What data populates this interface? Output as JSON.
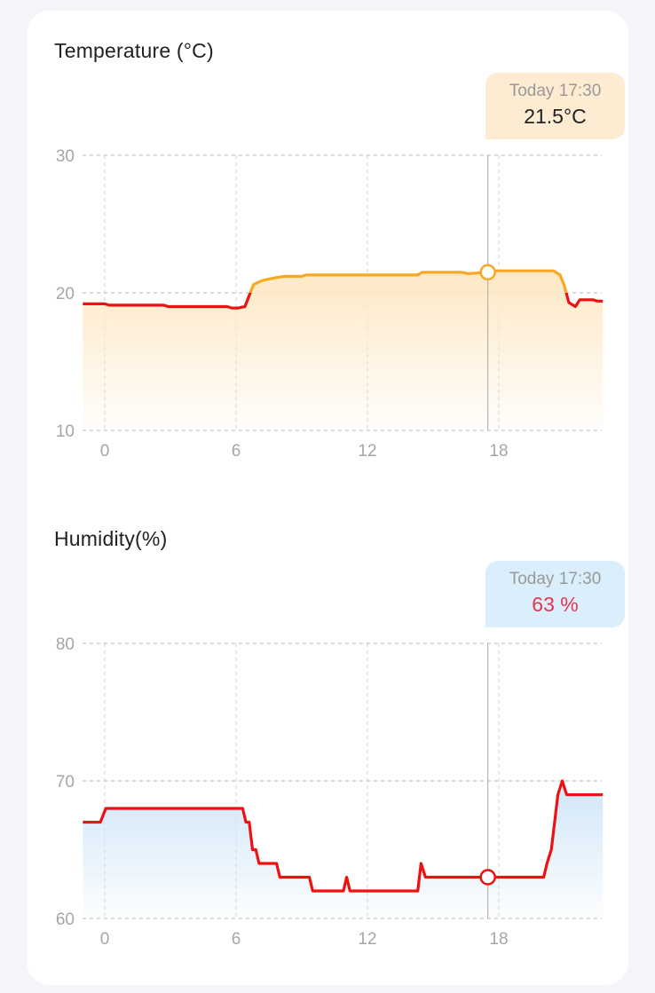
{
  "colors": {
    "temp_line_high": "#f7a823",
    "temp_line_low": "#ee1111",
    "temp_fill": "#fde8c4",
    "hum_line": "#ee1111",
    "hum_fill": "#cfe6f8",
    "temp_tip_bg": "#fdebd2",
    "hum_tip_bg": "#daeefb",
    "hum_value": "#e8334f"
  },
  "chart_data": [
    {
      "type": "area",
      "title": "Temperature (°C)",
      "xticks": [
        "0",
        "6",
        "12",
        "18"
      ],
      "xtick_values": [
        0,
        6,
        12,
        18
      ],
      "xlim": [
        -1,
        22.75
      ],
      "yticks": [
        "10",
        "20",
        "30"
      ],
      "ylim": [
        10,
        30
      ],
      "grid": true,
      "visual_threshold": 20,
      "x": [
        -1,
        0,
        0.2,
        2.7,
        2.9,
        5.6,
        5.8,
        6.1,
        6.4,
        6.6,
        6.8,
        7.2,
        7.8,
        8.2,
        9.0,
        9.2,
        14.3,
        14.5,
        16.3,
        16.6,
        17.5,
        17.8,
        20.5,
        20.8,
        21.0,
        21.2,
        21.5,
        21.7,
        22.3,
        22.5,
        22.75
      ],
      "y": [
        19.2,
        19.2,
        19.1,
        19.1,
        19.0,
        19.0,
        18.9,
        18.9,
        19.0,
        19.8,
        20.6,
        20.9,
        21.1,
        21.2,
        21.2,
        21.3,
        21.3,
        21.5,
        21.5,
        21.4,
        21.5,
        21.6,
        21.6,
        21.3,
        20.5,
        19.3,
        19.0,
        19.5,
        19.5,
        19.4,
        19.4
      ],
      "cursor": {
        "x": 17.5,
        "y": 21.5,
        "label": "Today 17:30",
        "value": "21.5°C"
      }
    },
    {
      "type": "area",
      "title": "Humidity(%)",
      "xticks": [
        "0",
        "6",
        "12",
        "18"
      ],
      "xtick_values": [
        0,
        6,
        12,
        18
      ],
      "xlim": [
        -1,
        22.75
      ],
      "yticks": [
        "60",
        "70",
        "80"
      ],
      "ylim": [
        60,
        80
      ],
      "grid": true,
      "x": [
        -1,
        -0.2,
        0.05,
        6.3,
        6.45,
        6.6,
        6.75,
        6.9,
        7.05,
        7.85,
        8.0,
        9.35,
        9.5,
        10.9,
        11.05,
        11.2,
        14.3,
        14.45,
        14.65,
        20.05,
        20.2,
        20.4,
        20.55,
        20.7,
        20.9,
        21.1,
        22.75
      ],
      "y": [
        67,
        67,
        68,
        68,
        67,
        67,
        65,
        65,
        64,
        64,
        63,
        63,
        62,
        62,
        63,
        62,
        62,
        64,
        63,
        63,
        64,
        65,
        67,
        69,
        70,
        69,
        69
      ],
      "cursor": {
        "x": 17.5,
        "y": 63,
        "label": "Today 17:30",
        "value": "63 %"
      }
    }
  ]
}
